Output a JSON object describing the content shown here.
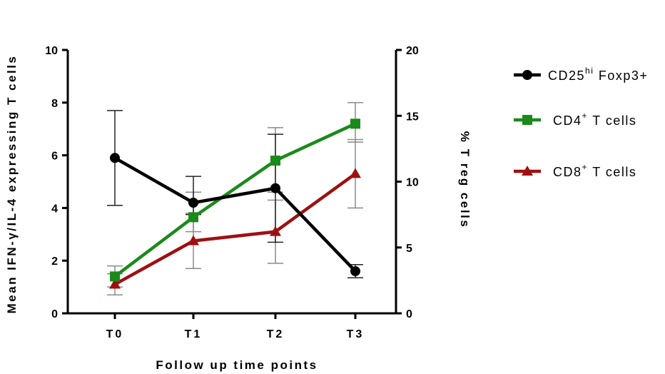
{
  "chart_data": {
    "type": "line",
    "title": "",
    "xlabel": "Follow up time points",
    "ylabel_left": "Mean IFN-γ/IL-4 expressing T cells",
    "ylabel_right": "% T reg cells",
    "categories": [
      "T0",
      "T1",
      "T2",
      "T3"
    ],
    "ylim_left": [
      0,
      10
    ],
    "yticks_left": [
      "0",
      "2",
      "4",
      "6",
      "8",
      "10"
    ],
    "ylim_right": [
      0,
      20
    ],
    "yticks_right": [
      "0",
      "5",
      "10",
      "15",
      "20"
    ],
    "grid": false,
    "legend_position": "right",
    "series": [
      {
        "name": "CD25hi Foxp3+",
        "legend_base": "CD25",
        "legend_sup": "hi",
        "legend_rest": " Foxp3+",
        "axis": "right",
        "color": "#000000",
        "marker": "circle",
        "values": [
          11.8,
          8.4,
          9.5,
          3.2
        ],
        "err_low": [
          8.2,
          7.5,
          5.4,
          2.7
        ],
        "err_high": [
          15.4,
          10.4,
          13.6,
          3.7
        ]
      },
      {
        "name": "CD4+ T cells",
        "legend_base": "CD4",
        "legend_sup": "+",
        "legend_rest": " T cells",
        "axis": "left",
        "color": "#1a8a1a",
        "marker": "square",
        "values": [
          1.4,
          3.65,
          5.8,
          7.2
        ],
        "err_low": [
          1.0,
          3.1,
          4.6,
          6.5
        ],
        "err_high": [
          1.8,
          4.6,
          7.05,
          8.0
        ]
      },
      {
        "name": "CD8+ T cells",
        "legend_base": "CD8",
        "legend_sup": "+",
        "legend_rest": " T cells",
        "axis": "left",
        "color": "#9e1010",
        "marker": "triangle",
        "values": [
          1.1,
          2.75,
          3.1,
          5.3
        ],
        "err_low": [
          0.7,
          1.7,
          1.9,
          4.0
        ],
        "err_high": [
          1.5,
          3.8,
          4.3,
          6.6
        ]
      }
    ]
  }
}
